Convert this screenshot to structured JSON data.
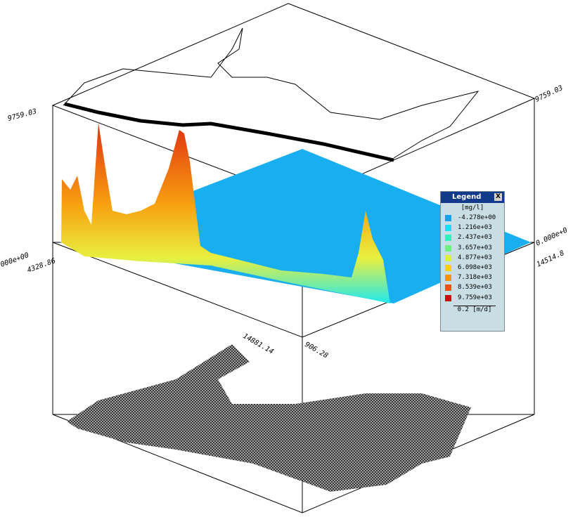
{
  "axes": {
    "z_max_left": "9759.03",
    "z_max_right": "9759.03",
    "z_min_left": "000e+00",
    "x_min": "4328.86",
    "z_min_right": "0.000e+0",
    "x_max_right": "14514.8",
    "y_max": "14881.14",
    "y_min": "906.28"
  },
  "legend": {
    "title": "Legend",
    "unit": "[mg/l]",
    "entries": [
      {
        "label": "-4.278e+00",
        "color": "#1aa0e8"
      },
      {
        "label": "1.216e+03",
        "color": "#18e0f0"
      },
      {
        "label": "2.437e+03",
        "color": "#30f0c0"
      },
      {
        "label": "3.657e+03",
        "color": "#70f080"
      },
      {
        "label": "4.877e+03",
        "color": "#d8f040"
      },
      {
        "label": "6.098e+03",
        "color": "#f8d010"
      },
      {
        "label": "7.318e+03",
        "color": "#f89010"
      },
      {
        "label": "8.539e+03",
        "color": "#f05010"
      },
      {
        "label": "9.759e+03",
        "color": "#c81010"
      }
    ],
    "velocity": "0.2 [m/d]"
  }
}
